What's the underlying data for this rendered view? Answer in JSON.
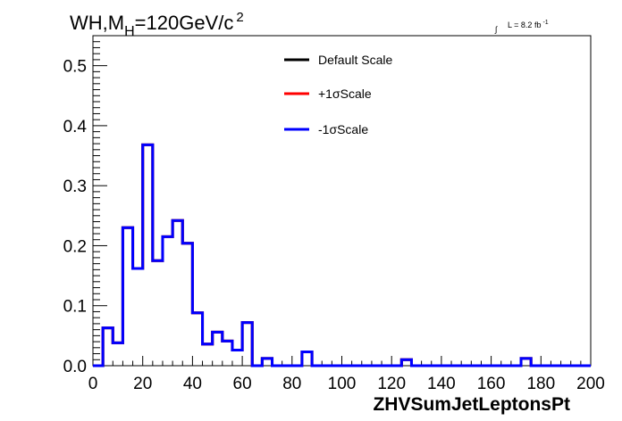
{
  "chart_data": {
    "type": "histogram",
    "title": {
      "prefix": "WH,M",
      "subscript": "H",
      "main": "=120GeV/c",
      "superscript": "2"
    },
    "lumi": {
      "integral": "∫",
      "text": "L = 8.2 fb",
      "superscript": "-1"
    },
    "xlabel": "ZHVSumJetLeptonsPt",
    "ylabel": "",
    "xlim": [
      0,
      200
    ],
    "ylim": [
      0,
      0.55
    ],
    "xticks": [
      0,
      20,
      40,
      60,
      80,
      100,
      120,
      140,
      160,
      180,
      200
    ],
    "xtick_labels": [
      "0",
      "20",
      "40",
      "60",
      "80",
      "100",
      "120",
      "140",
      "160",
      "180",
      "200"
    ],
    "yticks": [
      0,
      0.1,
      0.2,
      0.3,
      0.4,
      0.5
    ],
    "ytick_labels": [
      "0.0",
      "0.1",
      "0.2",
      "0.3",
      "0.4",
      "0.5"
    ],
    "bin_width": 4,
    "bin_edges_start": 0,
    "values": [
      0,
      0.063,
      0.038,
      0.23,
      0.162,
      0.368,
      0.175,
      0.215,
      0.242,
      0.204,
      0.088,
      0.036,
      0.056,
      0.041,
      0.026,
      0.072,
      0,
      0.012,
      0,
      0,
      0,
      0.023,
      0,
      0,
      0,
      0,
      0,
      0,
      0,
      0,
      0,
      0.01,
      0,
      0,
      0,
      0,
      0,
      0,
      0,
      0,
      0,
      0,
      0,
      0.012,
      0,
      0,
      0,
      0,
      0,
      0
    ],
    "series": [
      {
        "name": "Default Scale",
        "color": "#000000"
      },
      {
        "name": "+1σScale",
        "color": "#ff0000"
      },
      {
        "name": "-1σScale",
        "color": "#0000ff"
      }
    ],
    "legend_position": "top-right",
    "grid": false
  }
}
